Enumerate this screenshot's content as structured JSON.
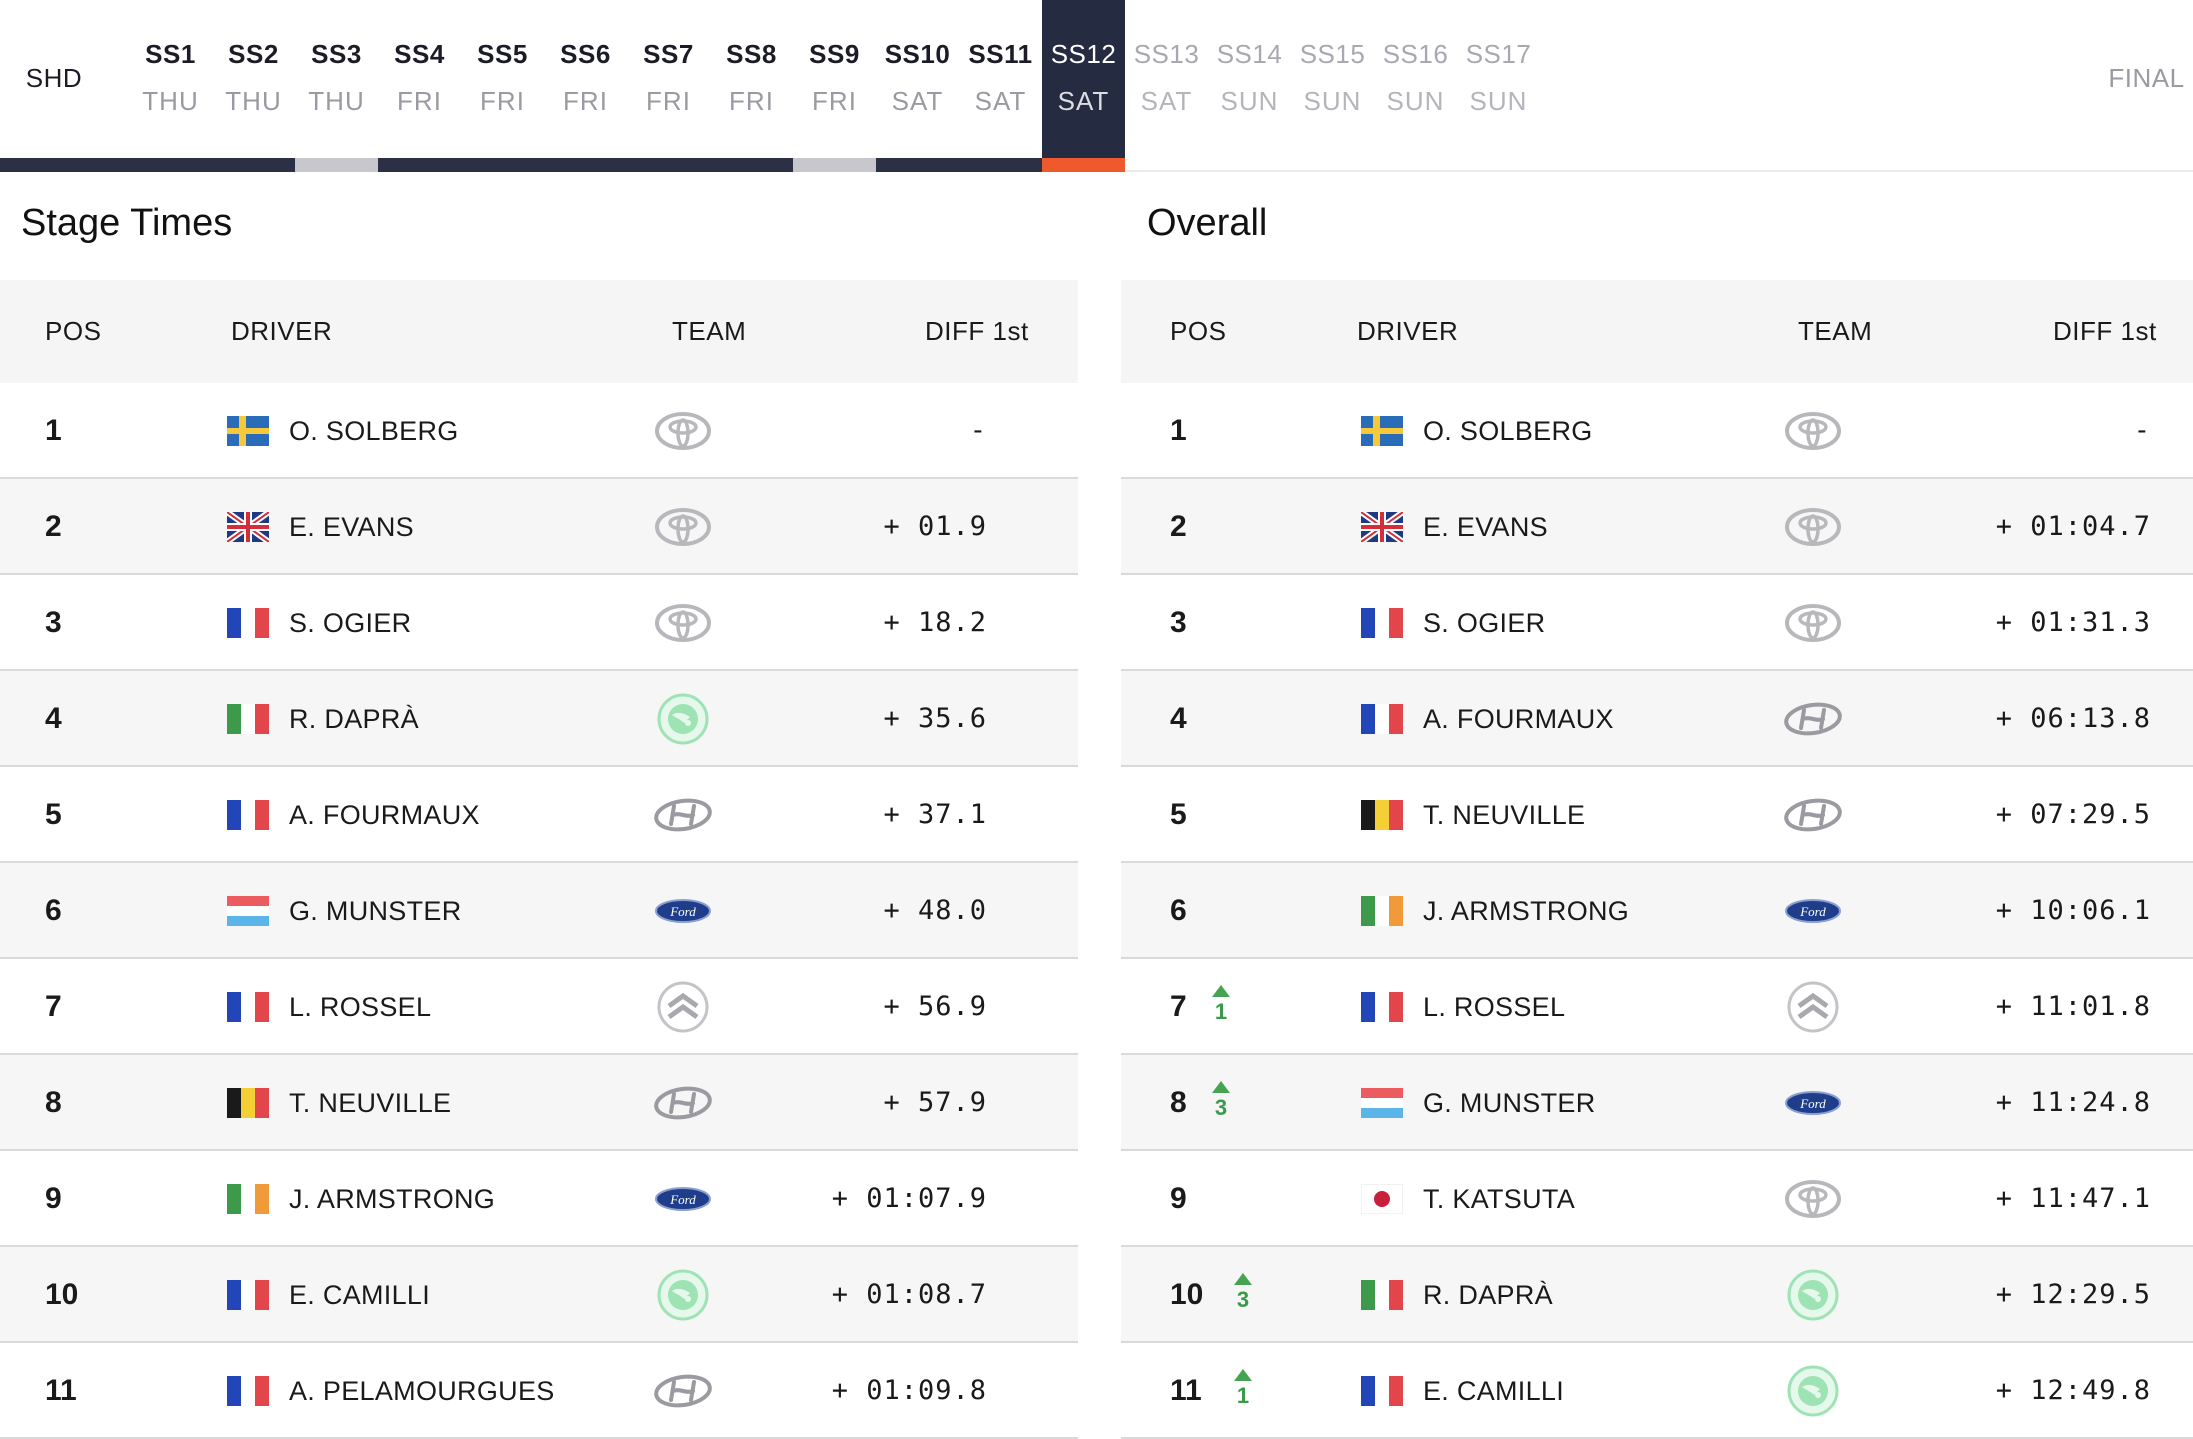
{
  "nav": {
    "shakedown": "SHD",
    "final": "FINAL",
    "stages": [
      {
        "code": "SS1",
        "day": "THU",
        "state": "done"
      },
      {
        "code": "SS2",
        "day": "THU",
        "state": "done"
      },
      {
        "code": "SS3",
        "day": "THU",
        "state": "cancelled"
      },
      {
        "code": "SS4",
        "day": "FRI",
        "state": "done"
      },
      {
        "code": "SS5",
        "day": "FRI",
        "state": "done"
      },
      {
        "code": "SS6",
        "day": "FRI",
        "state": "done"
      },
      {
        "code": "SS7",
        "day": "FRI",
        "state": "done"
      },
      {
        "code": "SS8",
        "day": "FRI",
        "state": "done"
      },
      {
        "code": "SS9",
        "day": "FRI",
        "state": "cancelled"
      },
      {
        "code": "SS10",
        "day": "SAT",
        "state": "done"
      },
      {
        "code": "SS11",
        "day": "SAT",
        "state": "done"
      },
      {
        "code": "SS12",
        "day": "SAT",
        "state": "active"
      },
      {
        "code": "SS13",
        "day": "SAT",
        "state": "future"
      },
      {
        "code": "SS14",
        "day": "SUN",
        "state": "future"
      },
      {
        "code": "SS15",
        "day": "SUN",
        "state": "future"
      },
      {
        "code": "SS16",
        "day": "SUN",
        "state": "future"
      },
      {
        "code": "SS17",
        "day": "SUN",
        "state": "future"
      }
    ]
  },
  "colors": {
    "nav_dark": "#252b40",
    "accent_orange": "#ee5a2c",
    "cancelled_grey": "#c8c8cc",
    "gain_green": "#45a352"
  },
  "stage_times": {
    "title": "Stage Times",
    "headers": {
      "pos": "POS",
      "driver": "DRIVER",
      "team": "TEAM",
      "diff": "DIFF 1st"
    },
    "rows": [
      {
        "pos": "1",
        "flag": "SE",
        "driver": "O. SOLBERG",
        "team": "toyota",
        "diff": "-"
      },
      {
        "pos": "2",
        "flag": "GB",
        "driver": "E. EVANS",
        "team": "toyota",
        "diff": "+ 01.9"
      },
      {
        "pos": "3",
        "flag": "FR",
        "driver": "S. OGIER",
        "team": "toyota",
        "diff": "+ 18.2"
      },
      {
        "pos": "4",
        "flag": "IT",
        "driver": "R. DAPRÀ",
        "team": "skoda",
        "diff": "+ 35.6"
      },
      {
        "pos": "5",
        "flag": "FR",
        "driver": "A. FOURMAUX",
        "team": "hyundai",
        "diff": "+ 37.1"
      },
      {
        "pos": "6",
        "flag": "LU",
        "driver": "G. MUNSTER",
        "team": "ford",
        "diff": "+ 48.0"
      },
      {
        "pos": "7",
        "flag": "FR",
        "driver": "L. ROSSEL",
        "team": "citroen",
        "diff": "+ 56.9"
      },
      {
        "pos": "8",
        "flag": "BE",
        "driver": "T. NEUVILLE",
        "team": "hyundai",
        "diff": "+ 57.9"
      },
      {
        "pos": "9",
        "flag": "IE",
        "driver": "J. ARMSTRONG",
        "team": "ford",
        "diff": "+ 01:07.9"
      },
      {
        "pos": "10",
        "flag": "FR",
        "driver": "E. CAMILLI",
        "team": "skoda",
        "diff": "+ 01:08.7"
      },
      {
        "pos": "11",
        "flag": "FR",
        "driver": "A. PELAMOURGUES",
        "team": "hyundai",
        "diff": "+ 01:09.8"
      }
    ]
  },
  "overall": {
    "title": "Overall",
    "headers": {
      "pos": "POS",
      "driver": "DRIVER",
      "team": "TEAM",
      "diff": "DIFF 1st"
    },
    "rows": [
      {
        "pos": "1",
        "gain": "",
        "flag": "SE",
        "driver": "O. SOLBERG",
        "team": "toyota",
        "diff": "-"
      },
      {
        "pos": "2",
        "gain": "",
        "flag": "GB",
        "driver": "E. EVANS",
        "team": "toyota",
        "diff": "+ 01:04.7"
      },
      {
        "pos": "3",
        "gain": "",
        "flag": "FR",
        "driver": "S. OGIER",
        "team": "toyota",
        "diff": "+ 01:31.3"
      },
      {
        "pos": "4",
        "gain": "",
        "flag": "FR",
        "driver": "A. FOURMAUX",
        "team": "hyundai",
        "diff": "+ 06:13.8"
      },
      {
        "pos": "5",
        "gain": "",
        "flag": "BE",
        "driver": "T. NEUVILLE",
        "team": "hyundai",
        "diff": "+ 07:29.5"
      },
      {
        "pos": "6",
        "gain": "",
        "flag": "IE",
        "driver": "J. ARMSTRONG",
        "team": "ford",
        "diff": "+ 10:06.1"
      },
      {
        "pos": "7",
        "gain": "1",
        "flag": "FR",
        "driver": "L. ROSSEL",
        "team": "citroen",
        "diff": "+ 11:01.8"
      },
      {
        "pos": "8",
        "gain": "3",
        "flag": "LU",
        "driver": "G. MUNSTER",
        "team": "ford",
        "diff": "+ 11:24.8"
      },
      {
        "pos": "9",
        "gain": "",
        "flag": "JP",
        "driver": "T. KATSUTA",
        "team": "toyota",
        "diff": "+ 11:47.1"
      },
      {
        "pos": "10",
        "gain": "3",
        "flag": "IT",
        "driver": "R. DAPRÀ",
        "team": "skoda",
        "diff": "+ 12:29.5"
      },
      {
        "pos": "11",
        "gain": "1",
        "flag": "FR",
        "driver": "E. CAMILLI",
        "team": "skoda",
        "diff": "+ 12:49.8"
      }
    ]
  }
}
